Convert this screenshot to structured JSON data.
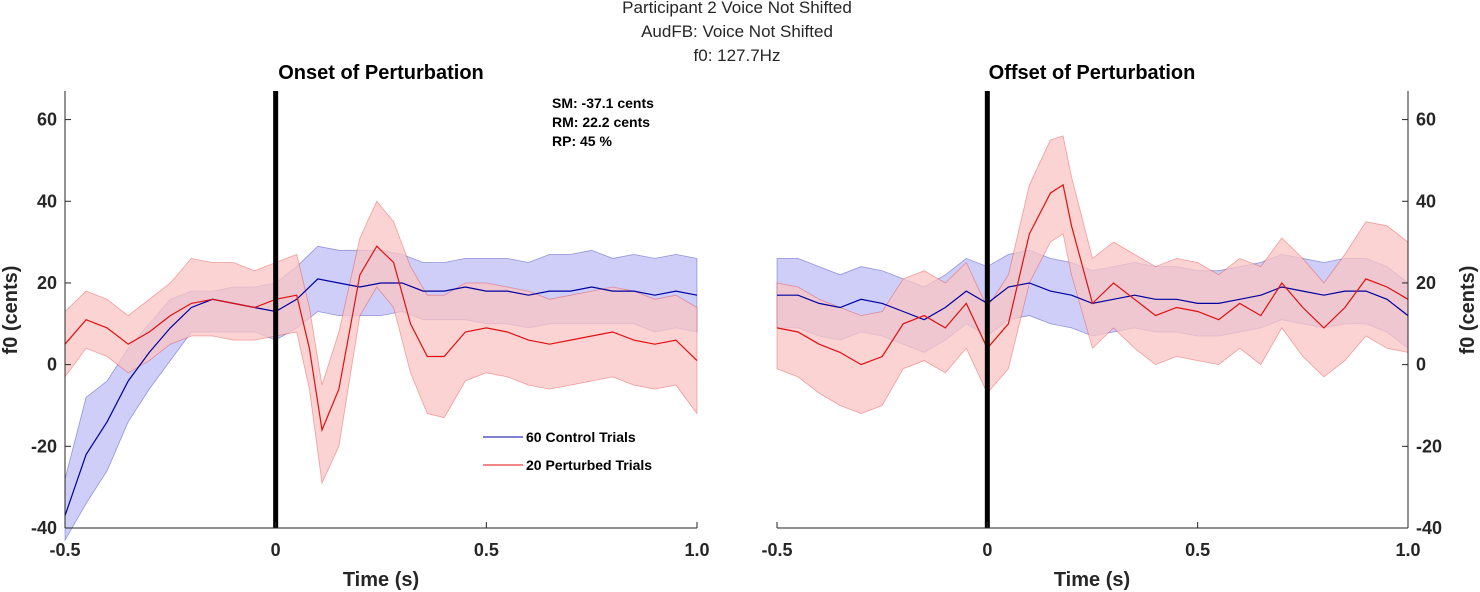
{
  "figure": {
    "title_lines": [
      "Participant 2 Voice Not Shifted",
      "AudFB: Voice Not Shifted",
      "f0: 127.7Hz"
    ]
  },
  "colors": {
    "control": "#0000a0",
    "control_band": "#bdbdf6",
    "perturbed": "#e01010",
    "perturbed_band": "#f9c4c4",
    "event_line": "#000000"
  },
  "chart_data": [
    {
      "type": "line",
      "title": "Onset of Perturbation",
      "xlabel": "Time (s)",
      "ylabel": "f0 (cents)",
      "xlim": [
        -0.5,
        1.0
      ],
      "ylim": [
        -40,
        67
      ],
      "xticks": [
        -0.5,
        0,
        0.5,
        1.0
      ],
      "xticklabels": [
        "-0.5",
        "0",
        "0.5",
        "1.0"
      ],
      "yticks": [
        -40,
        -20,
        0,
        20,
        40,
        60
      ],
      "yticklabels": [
        "-40",
        "-20",
        "0",
        "20",
        "40",
        "60"
      ],
      "yaxis_side": "left",
      "event_line_x": 0,
      "stats": [
        "SM: -37.1 cents",
        "RM: 22.2 cents",
        "RP: 45 %"
      ],
      "legend": [
        "60 Control Trials",
        "20 Perturbed Trials"
      ],
      "series": [
        {
          "name": "60 Control Trials",
          "color": "control",
          "x": [
            -0.5,
            -0.45,
            -0.4,
            -0.35,
            -0.3,
            -0.25,
            -0.2,
            -0.15,
            -0.1,
            -0.05,
            0.0,
            0.05,
            0.1,
            0.15,
            0.2,
            0.25,
            0.3,
            0.35,
            0.4,
            0.45,
            0.5,
            0.55,
            0.6,
            0.65,
            0.7,
            0.75,
            0.8,
            0.85,
            0.9,
            0.95,
            1.0
          ],
          "mean": [
            -37,
            -22,
            -14,
            -4,
            3,
            9,
            14,
            16,
            15,
            14,
            13,
            16,
            21,
            20,
            19,
            20,
            20,
            18,
            18,
            19,
            18,
            18,
            17,
            18,
            18,
            19,
            18,
            18,
            17,
            18,
            17
          ],
          "upper": [
            -28,
            -8,
            -4,
            4,
            10,
            16,
            18,
            18,
            19,
            19,
            20,
            24,
            29,
            28,
            28,
            28,
            27,
            25,
            25,
            26,
            26,
            26,
            25,
            27,
            27,
            28,
            26,
            27,
            26,
            27,
            26
          ],
          "lower": [
            -43,
            -34,
            -26,
            -14,
            -6,
            1,
            8,
            8,
            8,
            8,
            6,
            9,
            13,
            12,
            12,
            12,
            13,
            11,
            11,
            11,
            10,
            10,
            9,
            10,
            10,
            10,
            10,
            10,
            8,
            9,
            8
          ]
        },
        {
          "name": "20 Perturbed Trials",
          "color": "perturbed",
          "x": [
            -0.5,
            -0.45,
            -0.4,
            -0.35,
            -0.3,
            -0.25,
            -0.2,
            -0.15,
            -0.1,
            -0.05,
            0.0,
            0.05,
            0.08,
            0.11,
            0.15,
            0.2,
            0.24,
            0.28,
            0.32,
            0.36,
            0.4,
            0.45,
            0.5,
            0.55,
            0.6,
            0.65,
            0.7,
            0.75,
            0.8,
            0.85,
            0.9,
            0.95,
            1.0
          ],
          "mean": [
            5,
            11,
            9,
            5,
            8,
            12,
            15,
            16,
            15,
            14,
            16,
            17,
            4,
            -16,
            -6,
            22,
            29,
            25,
            10,
            2,
            2,
            8,
            9,
            8,
            6,
            5,
            6,
            7,
            8,
            6,
            5,
            6,
            1
          ],
          "upper": [
            13,
            18,
            16,
            12,
            16,
            20,
            26,
            25,
            25,
            23,
            25,
            27,
            14,
            -5,
            8,
            31,
            40,
            35,
            24,
            17,
            17,
            20,
            20,
            19,
            18,
            16,
            17,
            18,
            19,
            18,
            16,
            17,
            14
          ],
          "lower": [
            -3,
            4,
            2,
            -2,
            1,
            5,
            7,
            7,
            6,
            6,
            7,
            8,
            -6,
            -29,
            -20,
            12,
            19,
            14,
            -2,
            -12,
            -13,
            -4,
            -2,
            -3,
            -5,
            -6,
            -5,
            -4,
            -3,
            -5,
            -6,
            -5,
            -12
          ]
        }
      ]
    },
    {
      "type": "line",
      "title": "Offset of Perturbation",
      "xlabel": "Time (s)",
      "ylabel": "f0 (cents)",
      "xlim": [
        -0.5,
        1.0
      ],
      "ylim": [
        -40,
        67
      ],
      "xticks": [
        -0.5,
        0,
        0.5,
        1.0
      ],
      "xticklabels": [
        "-0.5",
        "0",
        "0.5",
        "1.0"
      ],
      "yticks": [
        -40,
        -20,
        0,
        20,
        40,
        60
      ],
      "yticklabels": [
        "-40",
        "-20",
        "0",
        "20",
        "40",
        "60"
      ],
      "yaxis_side": "right",
      "event_line_x": 0,
      "series": [
        {
          "name": "60 Control Trials",
          "color": "control",
          "x": [
            -0.5,
            -0.45,
            -0.4,
            -0.35,
            -0.3,
            -0.25,
            -0.2,
            -0.15,
            -0.1,
            -0.05,
            0.0,
            0.05,
            0.1,
            0.15,
            0.2,
            0.25,
            0.3,
            0.35,
            0.4,
            0.45,
            0.5,
            0.55,
            0.6,
            0.65,
            0.7,
            0.75,
            0.8,
            0.85,
            0.9,
            0.95,
            1.0
          ],
          "mean": [
            17,
            17,
            15,
            14,
            16,
            15,
            13,
            11,
            14,
            18,
            15,
            19,
            20,
            18,
            17,
            15,
            16,
            17,
            16,
            16,
            15,
            15,
            16,
            17,
            19,
            18,
            17,
            18,
            18,
            16,
            12
          ],
          "upper": [
            26,
            26,
            24,
            22,
            24,
            23,
            21,
            19,
            22,
            26,
            24,
            27,
            28,
            26,
            25,
            23,
            24,
            25,
            24,
            24,
            23,
            23,
            24,
            25,
            27,
            26,
            25,
            26,
            26,
            24,
            20
          ],
          "lower": [
            9,
            9,
            7,
            6,
            8,
            7,
            5,
            3,
            6,
            10,
            7,
            11,
            12,
            10,
            9,
            7,
            8,
            9,
            8,
            8,
            7,
            7,
            8,
            9,
            11,
            10,
            9,
            10,
            10,
            8,
            4
          ]
        },
        {
          "name": "20 Perturbed Trials",
          "color": "perturbed",
          "x": [
            -0.5,
            -0.45,
            -0.4,
            -0.35,
            -0.3,
            -0.25,
            -0.2,
            -0.15,
            -0.1,
            -0.05,
            0.0,
            0.05,
            0.1,
            0.15,
            0.18,
            0.2,
            0.25,
            0.3,
            0.35,
            0.4,
            0.45,
            0.5,
            0.55,
            0.6,
            0.65,
            0.7,
            0.75,
            0.8,
            0.85,
            0.9,
            0.95,
            1.0
          ],
          "mean": [
            9,
            8,
            5,
            3,
            0,
            2,
            10,
            12,
            9,
            15,
            4,
            10,
            32,
            42,
            44,
            34,
            15,
            20,
            16,
            12,
            14,
            13,
            11,
            15,
            12,
            20,
            14,
            9,
            14,
            21,
            19,
            16
          ],
          "upper": [
            20,
            19,
            16,
            14,
            12,
            13,
            21,
            23,
            20,
            25,
            14,
            22,
            44,
            55,
            56,
            46,
            26,
            30,
            27,
            24,
            26,
            25,
            22,
            26,
            24,
            31,
            26,
            20,
            27,
            35,
            34,
            30
          ],
          "lower": [
            -1,
            -3,
            -7,
            -10,
            -12,
            -10,
            -1,
            1,
            -2,
            4,
            -7,
            -1,
            20,
            30,
            32,
            22,
            4,
            9,
            4,
            0,
            2,
            1,
            0,
            4,
            0,
            9,
            2,
            -3,
            1,
            7,
            4,
            3
          ]
        }
      ]
    }
  ]
}
